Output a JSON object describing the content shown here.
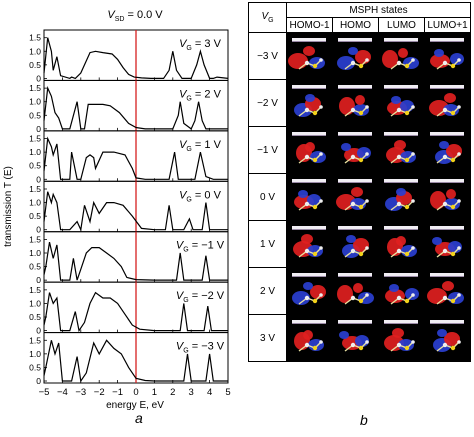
{
  "panel_a": {
    "title": "V_SD = 0.0 V",
    "ylabel": "transmission T (E)",
    "xlabel": "energy E, eV",
    "caption": "a",
    "xticks": [
      "−5",
      "−4",
      "−3",
      "−2",
      "−1",
      "0",
      "1",
      "2",
      "3",
      "4",
      "5"
    ],
    "yticks": [
      "0",
      "0.5",
      "1.0",
      "1.5"
    ],
    "vg_labels": [
      "V_G = 3 V",
      "V_G = 2 V",
      "V_G = 1 V",
      "V_G = 0 V",
      "V_G = −1 V",
      "V_G = −2 V",
      "V_G = −3 V"
    ],
    "colors": {
      "curve": "#000000",
      "fermi_line": "#d62020"
    }
  },
  "panel_b": {
    "vg_header": "V_G",
    "group_header": "MSPH states",
    "columns": [
      "HOMO-1",
      "HOMO",
      "LUMO",
      "LUMO+1"
    ],
    "rows": [
      "−3 V",
      "−2 V",
      "−1 V",
      "0 V",
      "1 V",
      "2 V",
      "3 V"
    ],
    "caption": "b",
    "colors": {
      "positive_lobe": "#e02020",
      "negative_lobe": "#2a3fd0",
      "background": "#000000"
    }
  },
  "chart_data": {
    "type": "line",
    "xlabel": "energy E, eV",
    "ylabel": "transmission T (E)",
    "xlim": [
      -5,
      5
    ],
    "ylim": [
      0,
      1.6
    ],
    "fermi_level_x": 0,
    "series": [
      {
        "name": "V_G = 3 V",
        "x": [
          -5,
          -4.8,
          -4.6,
          -4.5,
          -4.3,
          -4.1,
          -3.6,
          -3.5,
          -3.3,
          -3.0,
          -2.5,
          -2.2,
          -1.8,
          -1.3,
          -1.0,
          -0.7,
          -0.4,
          -0.1,
          0.3,
          0.8,
          1.5,
          1.8,
          2.0,
          2.2,
          2.5,
          3.0,
          3.3,
          3.5,
          3.7,
          4.0,
          4.2,
          4.4,
          5
        ],
        "y": [
          0.2,
          1.5,
          1.0,
          0.3,
          0.8,
          0.1,
          0.0,
          0.05,
          0.0,
          0.2,
          0.95,
          1.0,
          0.95,
          0.9,
          0.7,
          0.4,
          0.15,
          0.05,
          0.02,
          0.0,
          0.0,
          0.3,
          1.0,
          0.3,
          0.0,
          0.0,
          0.5,
          1.0,
          0.5,
          0.0,
          0.0,
          0.05,
          0.0
        ]
      },
      {
        "name": "V_G = 2 V",
        "x": [
          -5,
          -4.8,
          -4.6,
          -4.4,
          -4.2,
          -4.0,
          -3.6,
          -3.2,
          -3.0,
          -2.8,
          -2.6,
          -2.2,
          -1.8,
          -1.4,
          -0.9,
          -0.4,
          0.0,
          0.5,
          1.0,
          2.0,
          2.3,
          2.4,
          2.6,
          3.0,
          3.2,
          3.4,
          3.6,
          3.8,
          4.2,
          5
        ],
        "y": [
          0.3,
          1.5,
          1.2,
          0.6,
          0.4,
          0.0,
          0.0,
          1.0,
          0.0,
          0.0,
          0.9,
          0.9,
          0.9,
          0.85,
          0.6,
          0.2,
          0.05,
          0.0,
          0.0,
          0.0,
          0.5,
          1.0,
          0.2,
          0.0,
          0.3,
          1.0,
          0.3,
          0.0,
          0.0,
          0.0
        ]
      },
      {
        "name": "V_G = 1 V",
        "x": [
          -5,
          -4.8,
          -4.6,
          -4.5,
          -4.3,
          -4.1,
          -3.6,
          -3.5,
          -3.2,
          -3.0,
          -2.7,
          -2.5,
          -2.3,
          -2.2,
          -1.8,
          -1.2,
          -0.6,
          -0.2,
          0.0,
          0.5,
          1.0,
          1.8,
          2.1,
          2.3,
          2.6,
          3.0,
          3.2,
          3.5,
          3.8,
          4.2,
          5
        ],
        "y": [
          0.3,
          1.5,
          1.2,
          0.9,
          1.3,
          0.0,
          0.0,
          1.0,
          0.0,
          0.0,
          0.8,
          0.9,
          0.8,
          0.4,
          1.0,
          1.0,
          0.9,
          0.4,
          0.05,
          0.0,
          0.0,
          0.0,
          1.0,
          0.0,
          0.0,
          0.0,
          0.0,
          1.0,
          0.1,
          0.0,
          0.0
        ]
      },
      {
        "name": "V_G = 0 V",
        "x": [
          -5,
          -4.8,
          -4.6,
          -4.5,
          -4.3,
          -4.1,
          -3.6,
          -3.2,
          -3.0,
          -2.8,
          -2.5,
          -2.3,
          -2.0,
          -1.6,
          -1.2,
          -0.7,
          -0.2,
          0.3,
          1.0,
          1.6,
          1.8,
          2.0,
          2.6,
          2.9,
          3.1,
          3.6,
          3.8,
          4.0,
          4.2,
          5
        ],
        "y": [
          0.3,
          1.4,
          1.0,
          1.3,
          1.0,
          0.0,
          0.0,
          0.3,
          0.0,
          0.9,
          0.3,
          1.0,
          0.6,
          1.0,
          1.0,
          0.9,
          0.5,
          0.05,
          0.0,
          0.0,
          0.9,
          0.0,
          0.0,
          0.4,
          0.0,
          0.0,
          1.0,
          0.0,
          0.0,
          0.0
        ]
      },
      {
        "name": "V_G = −1 V",
        "x": [
          -5,
          -4.9,
          -4.7,
          -4.5,
          -4.3,
          -4.1,
          -3.6,
          -3.4,
          -3.2,
          -3.0,
          -2.7,
          -2.4,
          -2.0,
          -1.6,
          -1.2,
          -0.8,
          -0.5,
          0.0,
          1.0,
          2.2,
          2.4,
          2.6,
          3.0,
          3.6,
          3.8,
          4.0,
          5
        ],
        "y": [
          0.2,
          0.5,
          1.4,
          0.8,
          1.3,
          0.0,
          0.0,
          0.8,
          0.0,
          0.4,
          1.0,
          1.2,
          1.2,
          1.0,
          0.8,
          0.5,
          0.1,
          0.02,
          0.0,
          0.0,
          1.0,
          0.0,
          0.0,
          0.0,
          0.9,
          0.0,
          0.0
        ]
      },
      {
        "name": "V_G = −2 V",
        "x": [
          -5,
          -4.9,
          -4.7,
          -4.5,
          -4.3,
          -4.1,
          -3.6,
          -3.3,
          -3.1,
          -2.8,
          -2.5,
          -2.2,
          -1.8,
          -1.4,
          -1.0,
          -0.6,
          -0.2,
          0.2,
          1.0,
          2.4,
          2.6,
          2.8,
          3.2,
          3.7,
          3.9,
          4.1,
          5
        ],
        "y": [
          0.2,
          0.5,
          1.4,
          1.0,
          1.2,
          0.0,
          0.0,
          0.7,
          0.0,
          0.3,
          1.0,
          1.4,
          1.2,
          1.2,
          1.0,
          0.6,
          0.2,
          0.05,
          0.0,
          0.0,
          1.0,
          0.0,
          0.0,
          0.0,
          0.9,
          0.0,
          0.0
        ]
      },
      {
        "name": "V_G = −3 V",
        "x": [
          -5,
          -4.9,
          -4.6,
          -4.4,
          -4.2,
          -4.0,
          -3.5,
          -3.2,
          -3.0,
          -2.7,
          -2.3,
          -2.0,
          -1.6,
          -1.2,
          -0.8,
          -0.4,
          0.0,
          0.5,
          1.0,
          2.6,
          2.8,
          3.0,
          3.4,
          3.8,
          4.0,
          4.2,
          5
        ],
        "y": [
          0.2,
          0.5,
          1.5,
          1.0,
          1.4,
          0.0,
          0.0,
          0.9,
          0.0,
          0.3,
          1.4,
          1.0,
          1.5,
          1.2,
          1.0,
          0.5,
          0.1,
          0.02,
          0.0,
          0.0,
          1.0,
          0.0,
          0.0,
          0.0,
          1.0,
          0.0,
          0.0
        ]
      }
    ]
  }
}
